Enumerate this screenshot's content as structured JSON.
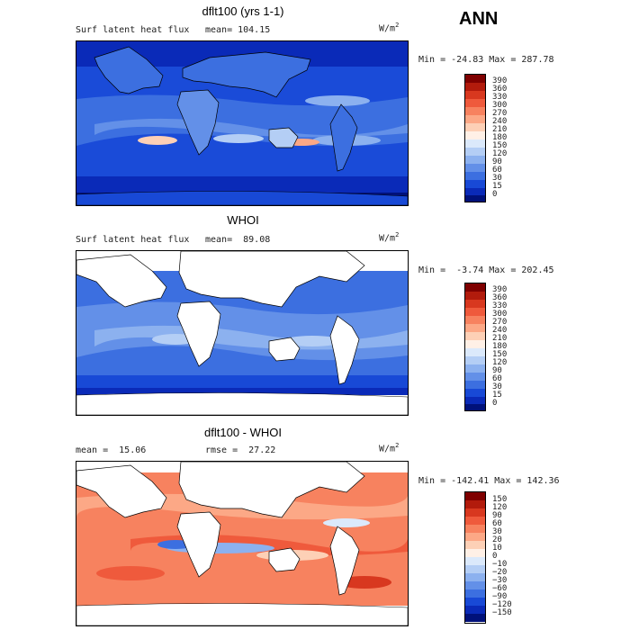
{
  "season": "ANN",
  "units_base": "W/m",
  "units_exp": "2",
  "panels": [
    {
      "title": "dflt100 (yrs 1-1)",
      "left_label": "Surf latent heat flux",
      "right_label": "mean= 104.15",
      "minmax": "Min = -24.83 Max = 287.78",
      "levels": [
        "390",
        "360",
        "330",
        "300",
        "270",
        "240",
        "210",
        "180",
        "150",
        "120",
        "90",
        "60",
        "30",
        "15",
        "0"
      ],
      "colors": [
        "#7f0000",
        "#b21b0c",
        "#d8381f",
        "#ef5a3c",
        "#f7825f",
        "#fca886",
        "#fdd0b6",
        "#fff0e6",
        "#dbe9fb",
        "#b4cef5",
        "#8cb1ef",
        "#6390e8",
        "#3c6fe0",
        "#1849d6",
        "#0a2ab8",
        "#00117a"
      ]
    },
    {
      "title": "WHOI",
      "left_label": "Surf latent heat flux",
      "right_label": "mean=  89.08",
      "minmax": "Min =  -3.74 Max = 202.45",
      "levels": [
        "390",
        "360",
        "330",
        "300",
        "270",
        "240",
        "210",
        "180",
        "150",
        "120",
        "90",
        "60",
        "30",
        "15",
        "0"
      ],
      "colors": [
        "#7f0000",
        "#b21b0c",
        "#d8381f",
        "#ef5a3c",
        "#f7825f",
        "#fca886",
        "#fdd0b6",
        "#fff0e6",
        "#dbe9fb",
        "#b4cef5",
        "#8cb1ef",
        "#6390e8",
        "#3c6fe0",
        "#1849d6",
        "#0a2ab8",
        "#00117a"
      ]
    },
    {
      "title": "dflt100 - WHOI",
      "left_label": "mean =  15.06",
      "right_label": "rmse =  27.22",
      "minmax": "Min = -142.41 Max = 142.36",
      "levels": [
        "150",
        "120",
        "90",
        "60",
        "30",
        "20",
        "10",
        "0",
        "−10",
        "−20",
        "−30",
        "−60",
        "−90",
        "−120",
        "−150"
      ],
      "colors": [
        "#7f0000",
        "#b21b0c",
        "#d8381f",
        "#ef5a3c",
        "#f7825f",
        "#fca886",
        "#fdd0b6",
        "#fff0e6",
        "#dbe9fb",
        "#b4cef5",
        "#8cb1ef",
        "#6390e8",
        "#3c6fe0",
        "#1849d6",
        "#0a2ab8",
        "#00117a"
      ]
    }
  ]
}
